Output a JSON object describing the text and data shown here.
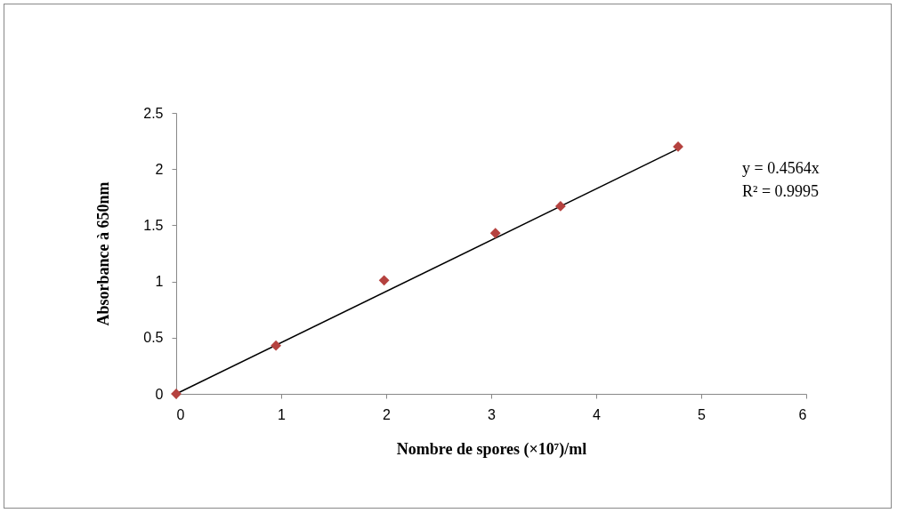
{
  "chart_data": {
    "type": "scatter",
    "xlabel": "Nombre de spores (×10⁷)/ml",
    "ylabel": "Absorbance à 650nm",
    "xlim": [
      0,
      6
    ],
    "xticks": [
      0,
      1,
      2,
      3,
      4,
      5,
      6
    ],
    "ylim": [
      0,
      2.5
    ],
    "yticks": [
      0,
      0.5,
      1,
      1.5,
      2,
      2.5
    ],
    "grid": false,
    "marker": "diamond",
    "annotations": [
      "y = 0.4564x",
      "R² = 0.9995"
    ],
    "series": [
      {
        "type": "line",
        "marker": "none",
        "color": "#000000",
        "x": [
          0,
          4.78
        ],
        "values": [
          0,
          2.18
        ]
      },
      {
        "type": "scatter",
        "color": "#b5423f",
        "x": [
          0,
          0.95,
          1.98,
          3.04,
          3.66,
          4.78
        ],
        "values": [
          0,
          0.43,
          1.01,
          1.43,
          1.67,
          2.2
        ]
      }
    ]
  }
}
